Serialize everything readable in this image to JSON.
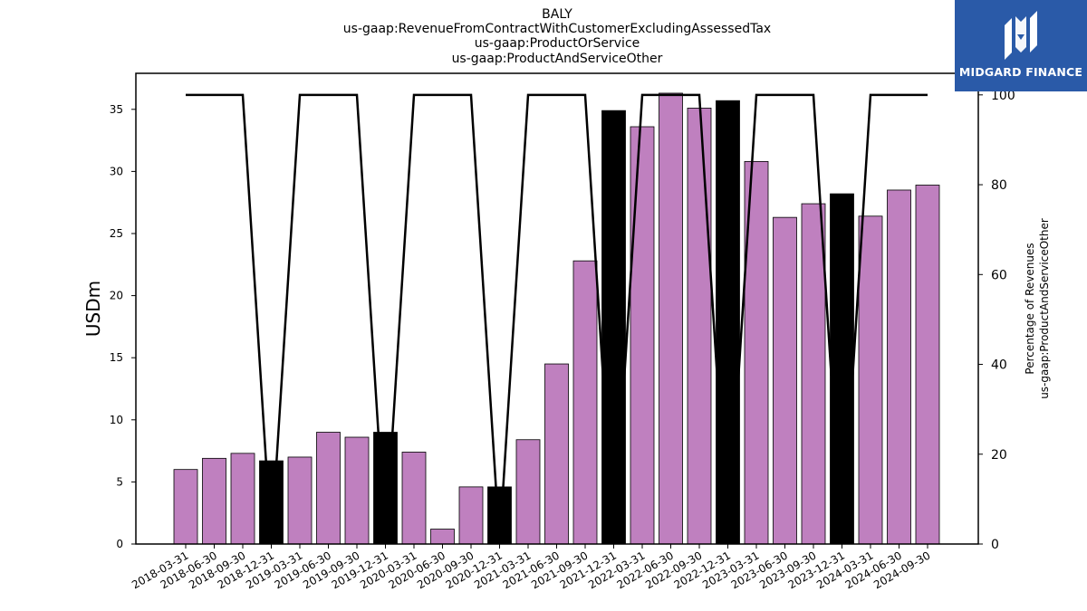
{
  "title_lines": [
    "BALY",
    "us-gaap:RevenueFromContractWithCustomerExcludingAssessedTax",
    "us-gaap:ProductOrService",
    "us-gaap:ProductAndServiceOther"
  ],
  "logo": {
    "text": "MIDGARD FINANCE",
    "icon": "midgard-logo-icon"
  },
  "colors": {
    "bar_default": "#bf80bf",
    "bar_highlight": "#000000",
    "line": "#000000",
    "logo_bg": "#2a5aa8"
  },
  "chart_data": {
    "type": "bar",
    "categories": [
      "2018-03-31",
      "2018-06-30",
      "2018-09-30",
      "2018-12-31",
      "2019-03-31",
      "2019-06-30",
      "2019-09-30",
      "2019-12-31",
      "2020-03-31",
      "2020-06-30",
      "2020-09-30",
      "2020-12-31",
      "2021-03-31",
      "2021-06-30",
      "2021-09-30",
      "2021-12-31",
      "2022-03-31",
      "2022-06-30",
      "2022-09-30",
      "2022-12-31",
      "2023-03-31",
      "2023-06-30",
      "2023-09-30",
      "2023-12-31",
      "2024-03-31",
      "2024-06-30",
      "2024-09-30"
    ],
    "values": [
      6.0,
      6.9,
      7.3,
      6.7,
      7.0,
      9.0,
      8.6,
      9.0,
      7.4,
      1.2,
      4.6,
      4.6,
      8.4,
      14.5,
      22.8,
      34.9,
      33.6,
      36.3,
      35.1,
      35.7,
      30.8,
      26.3,
      27.4,
      28.2,
      26.4,
      28.5,
      28.9
    ],
    "highlight_indices": [
      3,
      7,
      11,
      15,
      19,
      23
    ],
    "line_series": {
      "values": [
        100,
        100,
        100,
        0,
        100,
        100,
        100,
        0,
        100,
        100,
        100,
        0,
        100,
        100,
        100,
        0,
        100,
        100,
        100,
        0,
        100,
        100,
        100,
        0,
        100,
        100,
        100
      ]
    },
    "ylabel": "USDm",
    "ylabel_right": [
      "Percentage of Revenues",
      "us-gaap:ProductAndServiceOther"
    ],
    "ylim": [
      0,
      37.9
    ],
    "yticks": [
      0,
      5,
      10,
      15,
      20,
      25,
      30,
      35
    ],
    "ylim_right": [
      0,
      104.8
    ],
    "yticks_right": [
      0,
      20,
      40,
      60,
      80,
      100
    ],
    "grid": false
  }
}
